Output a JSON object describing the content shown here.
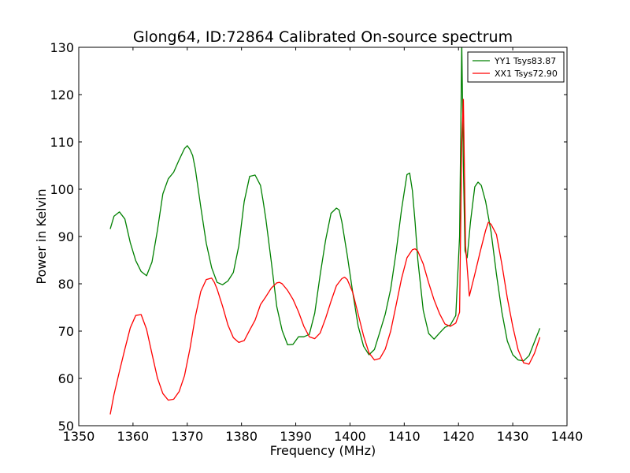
{
  "chart_data": {
    "type": "line",
    "title": "Glong64, ID:72864 Calibrated On-source spectrum",
    "xlabel": "Frequency (MHz)",
    "ylabel": "Power in Kelvin",
    "xlim": [
      1350,
      1440
    ],
    "ylim": [
      50,
      130
    ],
    "xticks": [
      "1350",
      "1360",
      "1370",
      "1380",
      "1390",
      "1400",
      "1410",
      "1420",
      "1430",
      "1440"
    ],
    "yticks": [
      "50",
      "60",
      "70",
      "80",
      "90",
      "100",
      "110",
      "120",
      "130"
    ],
    "grid": false,
    "legend_position": "top-right",
    "series": [
      {
        "name": "YY1 Tsys83.87",
        "color": "#008000",
        "x": [
          1355.8,
          1356.5,
          1357.5,
          1358.5,
          1359.5,
          1360.5,
          1361.5,
          1362.5,
          1363.5,
          1364.5,
          1365.5,
          1366.5,
          1367.5,
          1368.5,
          1369.5,
          1370.0,
          1370.5,
          1371.0,
          1371.5,
          1372.5,
          1373.5,
          1374.5,
          1375.5,
          1376.5,
          1377.5,
          1378.5,
          1379.5,
          1380.5,
          1381.5,
          1382.5,
          1383.5,
          1384.0,
          1384.5,
          1385.5,
          1386.5,
          1387.5,
          1388.5,
          1389.5,
          1390.5,
          1391.5,
          1392.5,
          1393.5,
          1394.5,
          1395.5,
          1396.5,
          1397.5,
          1398.0,
          1398.5,
          1399.5,
          1400.5,
          1401.5,
          1402.5,
          1403.5,
          1404.5,
          1405.5,
          1406.5,
          1407.5,
          1408.5,
          1409.5,
          1410.5,
          1411.0,
          1411.5,
          1412.0,
          1412.5,
          1413.5,
          1414.5,
          1415.5,
          1416.5,
          1417.5,
          1418.5,
          1419.5,
          1420.2,
          1420.6,
          1420.9,
          1421.2,
          1421.6,
          1422.2,
          1423.0,
          1423.6,
          1424.2,
          1425.0,
          1426.0,
          1427.0,
          1428.0,
          1429.0,
          1430.0,
          1431.0,
          1432.0,
          1433.0,
          1434.0,
          1435.0
        ],
        "y": [
          91.6,
          94.3,
          95.2,
          93.7,
          88.7,
          84.9,
          82.6,
          81.7,
          84.6,
          91.3,
          99.0,
          102.2,
          103.6,
          106.2,
          108.6,
          109.2,
          108.4,
          107.1,
          104.2,
          96.2,
          88.6,
          83.4,
          80.3,
          79.8,
          80.6,
          82.4,
          88.0,
          97.4,
          102.7,
          103.0,
          100.8,
          97.4,
          93.6,
          84.6,
          75.2,
          70.1,
          67.1,
          67.2,
          68.8,
          68.8,
          69.3,
          73.8,
          81.9,
          89.2,
          94.9,
          96.0,
          95.6,
          93.1,
          86.0,
          78.2,
          71.1,
          66.8,
          65.0,
          66.1,
          69.8,
          73.6,
          78.9,
          86.7,
          95.7,
          103.1,
          103.4,
          99.7,
          93.0,
          85.1,
          74.4,
          69.5,
          68.3,
          69.6,
          70.8,
          71.3,
          73.3,
          90.0,
          131.0,
          105.0,
          87.0,
          85.5,
          93.0,
          100.5,
          101.5,
          100.8,
          97.4,
          91.0,
          82.0,
          74.0,
          67.9,
          65.0,
          63.9,
          63.7,
          64.8,
          67.7,
          70.6
        ]
      },
      {
        "name": "XX1 Tsys72.90",
        "color": "#ff0000",
        "x": [
          1355.8,
          1356.5,
          1357.5,
          1358.5,
          1359.5,
          1360.5,
          1361.5,
          1362.5,
          1363.5,
          1364.5,
          1365.5,
          1366.5,
          1367.5,
          1368.5,
          1369.5,
          1370.5,
          1371.5,
          1372.5,
          1373.5,
          1374.5,
          1375.0,
          1375.5,
          1376.5,
          1377.5,
          1378.5,
          1379.5,
          1380.5,
          1381.5,
          1382.5,
          1383.5,
          1384.5,
          1385.5,
          1386.5,
          1387.0,
          1387.5,
          1388.5,
          1389.5,
          1390.5,
          1391.5,
          1392.5,
          1393.5,
          1394.5,
          1395.5,
          1396.5,
          1397.5,
          1398.5,
          1399.0,
          1399.5,
          1400.5,
          1401.5,
          1402.5,
          1403.5,
          1404.5,
          1405.5,
          1406.5,
          1407.5,
          1408.5,
          1409.5,
          1410.5,
          1411.5,
          1412.0,
          1412.5,
          1413.5,
          1414.5,
          1415.5,
          1416.5,
          1417.5,
          1418.5,
          1419.5,
          1420.2,
          1420.6,
          1420.9,
          1421.3,
          1422.0,
          1423.0,
          1424.0,
          1425.0,
          1425.5,
          1426.0,
          1427.0,
          1428.0,
          1429.0,
          1430.0,
          1431.0,
          1432.0,
          1433.0,
          1434.0,
          1435.0
        ],
        "y": [
          52.4,
          56.6,
          61.5,
          66.2,
          70.7,
          73.3,
          73.5,
          70.4,
          65.2,
          60.1,
          56.8,
          55.4,
          55.6,
          57.2,
          60.6,
          66.3,
          73.1,
          78.4,
          80.9,
          81.2,
          80.3,
          78.9,
          75.3,
          71.3,
          68.6,
          67.6,
          68.0,
          70.2,
          72.3,
          75.6,
          77.3,
          79.1,
          80.2,
          80.3,
          80.0,
          78.6,
          76.7,
          74.1,
          71.0,
          68.8,
          68.4,
          69.6,
          72.7,
          76.3,
          79.6,
          81.1,
          81.4,
          80.9,
          78.2,
          73.6,
          69.0,
          65.4,
          63.9,
          64.2,
          66.2,
          70.0,
          75.5,
          81.1,
          85.5,
          87.2,
          87.4,
          86.9,
          84.2,
          80.2,
          76.6,
          73.7,
          71.5,
          71.0,
          71.7,
          74.0,
          110.0,
          119.0,
          88.0,
          77.4,
          82.0,
          86.8,
          91.3,
          93.0,
          92.6,
          90.4,
          84.1,
          77.0,
          71.0,
          66.0,
          63.3,
          63.0,
          65.3,
          68.7
        ]
      }
    ]
  }
}
